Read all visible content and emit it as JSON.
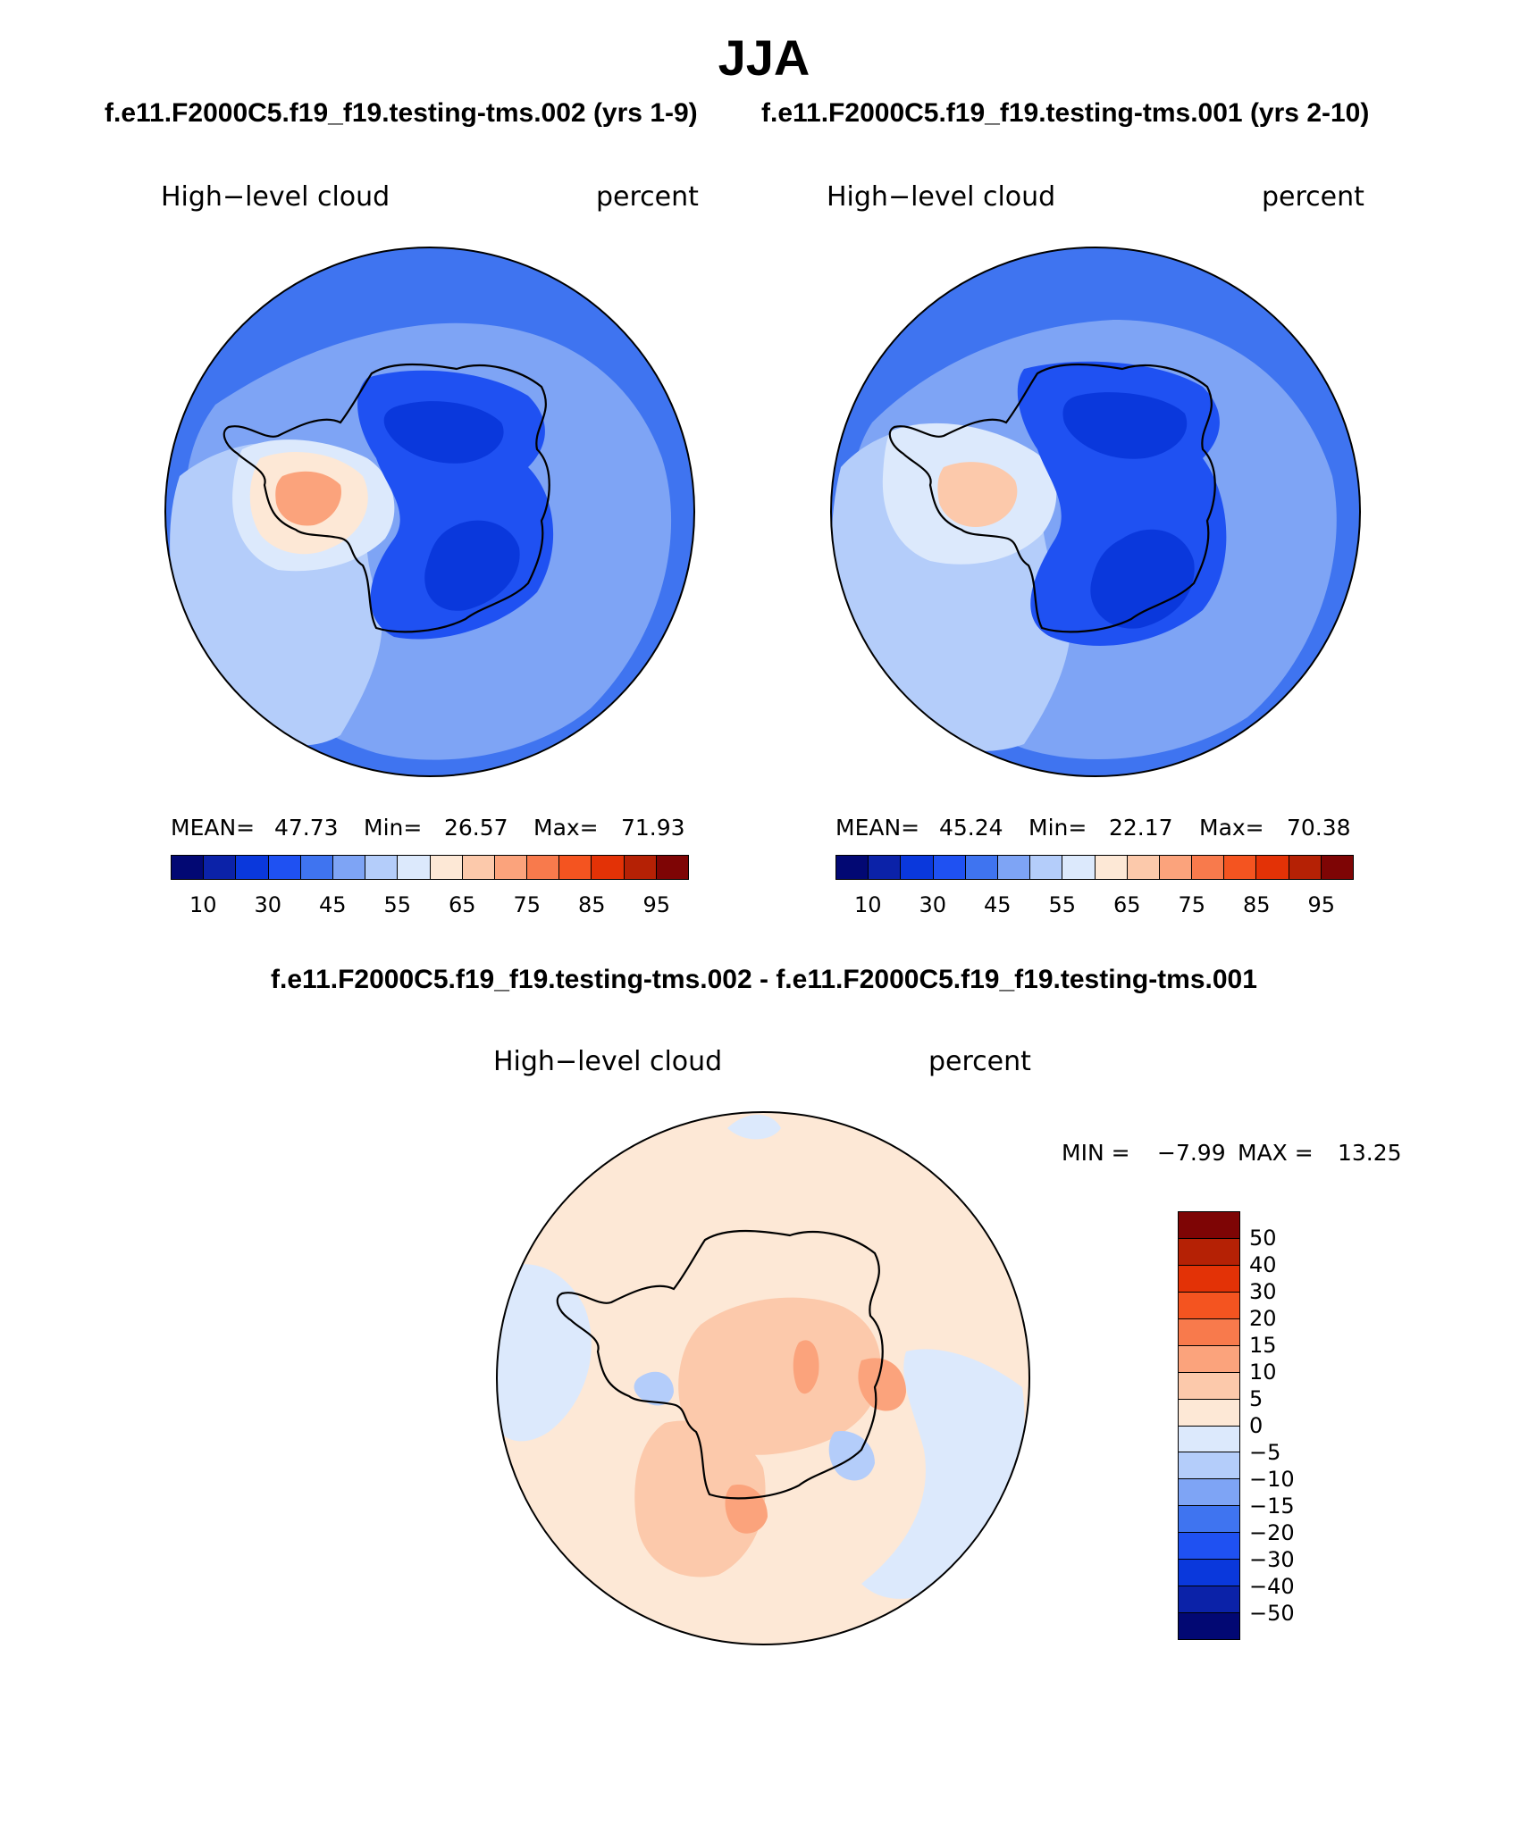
{
  "figure": {
    "season": "JJA",
    "case1_title": "f.e11.F2000C5.f19_f19.testing-tms.002 (yrs 1-9)",
    "case2_title": "f.e11.F2000C5.f19_f19.testing-tms.001 (yrs 2-10)",
    "diff_title": "f.e11.F2000C5.f19_f19.testing-tms.002 - f.e11.F2000C5.f19_f19.testing-tms.001"
  },
  "panels": [
    {
      "variable": "High−level cloud",
      "units": "percent",
      "mean_label": "MEAN=",
      "mean": "47.73",
      "min_label": "Min=",
      "min": "26.57",
      "max_label": "Max=",
      "max": "71.93"
    },
    {
      "variable": "High−level cloud",
      "units": "percent",
      "mean_label": "MEAN=",
      "mean": "45.24",
      "min_label": "Min=",
      "min": "22.17",
      "max_label": "Max=",
      "max": "70.38"
    }
  ],
  "diff_panel": {
    "variable": "High−level cloud",
    "units": "percent",
    "min_label": "MIN =",
    "min": "−7.99",
    "max_label": "MAX =",
    "max": "13.25"
  },
  "colorbar_abs": {
    "colors": [
      "#020873",
      "#0b22a8",
      "#0a38dc",
      "#1f51f2",
      "#3f74f0",
      "#7ea4f5",
      "#b4cdfa",
      "#dce9fc",
      "#fde8d6",
      "#fcc9ab",
      "#fba37c",
      "#f87a4c",
      "#f45420",
      "#e33206",
      "#b52105",
      "#7e0505"
    ],
    "tick_labels": [
      "10",
      "30",
      "45",
      "55",
      "65",
      "75",
      "85",
      "95"
    ]
  },
  "colorbar_diff": {
    "colors": [
      "#7e0505",
      "#b52105",
      "#e33206",
      "#f45420",
      "#f87a4c",
      "#fba37c",
      "#fcc9ab",
      "#fde8d6",
      "#dce9fc",
      "#b4cdfa",
      "#7ea4f5",
      "#3f74f0",
      "#1f51f2",
      "#0a38dc",
      "#0b22a8",
      "#020873"
    ],
    "tick_labels": [
      "50",
      "40",
      "30",
      "20",
      "15",
      "10",
      "5",
      "0",
      "−5",
      "−10",
      "−15",
      "−20",
      "−30",
      "−40",
      "−50"
    ]
  },
  "map_fields": {
    "projection": "south polar stereographic",
    "panel1": [
      {
        "fill": "#3f74f0",
        "region": "ocean-far",
        "level": 45
      },
      {
        "fill": "#7ea4f5",
        "region": "ocean-mid",
        "level": 50
      },
      {
        "fill": "#b4cdfa",
        "region": "pacific-sector",
        "level": 55
      },
      {
        "fill": "#dce9fc",
        "region": "antarctic-peninsula",
        "level": 60
      },
      {
        "fill": "#fde8d6",
        "region": "west-antarctica",
        "level": 65
      },
      {
        "fill": "#fba37c",
        "region": "ross-ice-shelf",
        "level": 72
      },
      {
        "fill": "#1f51f2",
        "region": "east-antarctica",
        "level": 35
      },
      {
        "fill": "#0a38dc",
        "region": "east-antarctic-plateau",
        "level": 30
      }
    ],
    "panel2": [
      {
        "fill": "#3f74f0",
        "region": "ocean-far",
        "level": 45
      },
      {
        "fill": "#7ea4f5",
        "region": "ocean-mid",
        "level": 50
      },
      {
        "fill": "#b4cdfa",
        "region": "pacific-sector",
        "level": 55
      },
      {
        "fill": "#dce9fc",
        "region": "antarctic-peninsula",
        "level": 60
      },
      {
        "fill": "#fcc9ab",
        "region": "ross-ice-shelf",
        "level": 68
      },
      {
        "fill": "#1f51f2",
        "region": "east-antarctica",
        "level": 35
      },
      {
        "fill": "#0a38dc",
        "region": "east-antarctic-plateau",
        "level": 25
      }
    ],
    "diff": [
      {
        "fill": "#fde8d6",
        "region": "background",
        "level": 2
      },
      {
        "fill": "#dce9fc",
        "region": "indian-and-pacific-ocean",
        "level": -2
      },
      {
        "fill": "#fcc9ab",
        "region": "east-antarctica",
        "level": 7
      },
      {
        "fill": "#fba37c",
        "region": "coastal-maxima",
        "level": 12
      },
      {
        "fill": "#b4cdfa",
        "region": "weddell-minimum",
        "level": -7
      }
    ]
  }
}
